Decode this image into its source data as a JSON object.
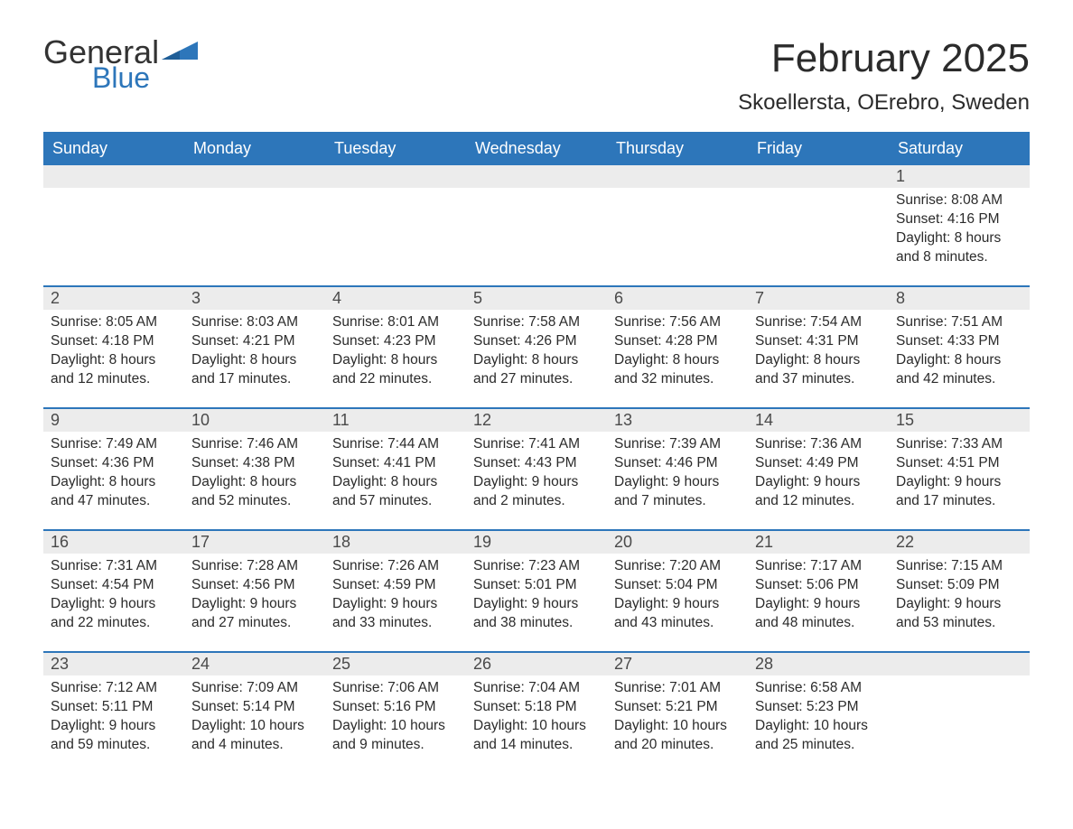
{
  "brand": {
    "word1": "General",
    "word2": "Blue",
    "color_dark": "#333333",
    "color_blue": "#2d76ba"
  },
  "title": "February 2025",
  "location": "Skoellersta, OErebro, Sweden",
  "header_bg": "#2d76ba",
  "header_fg": "#ffffff",
  "daynum_bg": "#ececec",
  "week_border": "#2d76ba",
  "text_color": "#2b2b2b",
  "dow": [
    "Sunday",
    "Monday",
    "Tuesday",
    "Wednesday",
    "Thursday",
    "Friday",
    "Saturday"
  ],
  "label_sunrise": "Sunrise: ",
  "label_sunset": "Sunset: ",
  "label_daylight": "Daylight: ",
  "weeks": [
    [
      null,
      null,
      null,
      null,
      null,
      null,
      {
        "n": "1",
        "sr": "8:08 AM",
        "ss": "4:16 PM",
        "dl": "8 hours and 8 minutes."
      }
    ],
    [
      {
        "n": "2",
        "sr": "8:05 AM",
        "ss": "4:18 PM",
        "dl": "8 hours and 12 minutes."
      },
      {
        "n": "3",
        "sr": "8:03 AM",
        "ss": "4:21 PM",
        "dl": "8 hours and 17 minutes."
      },
      {
        "n": "4",
        "sr": "8:01 AM",
        "ss": "4:23 PM",
        "dl": "8 hours and 22 minutes."
      },
      {
        "n": "5",
        "sr": "7:58 AM",
        "ss": "4:26 PM",
        "dl": "8 hours and 27 minutes."
      },
      {
        "n": "6",
        "sr": "7:56 AM",
        "ss": "4:28 PM",
        "dl": "8 hours and 32 minutes."
      },
      {
        "n": "7",
        "sr": "7:54 AM",
        "ss": "4:31 PM",
        "dl": "8 hours and 37 minutes."
      },
      {
        "n": "8",
        "sr": "7:51 AM",
        "ss": "4:33 PM",
        "dl": "8 hours and 42 minutes."
      }
    ],
    [
      {
        "n": "9",
        "sr": "7:49 AM",
        "ss": "4:36 PM",
        "dl": "8 hours and 47 minutes."
      },
      {
        "n": "10",
        "sr": "7:46 AM",
        "ss": "4:38 PM",
        "dl": "8 hours and 52 minutes."
      },
      {
        "n": "11",
        "sr": "7:44 AM",
        "ss": "4:41 PM",
        "dl": "8 hours and 57 minutes."
      },
      {
        "n": "12",
        "sr": "7:41 AM",
        "ss": "4:43 PM",
        "dl": "9 hours and 2 minutes."
      },
      {
        "n": "13",
        "sr": "7:39 AM",
        "ss": "4:46 PM",
        "dl": "9 hours and 7 minutes."
      },
      {
        "n": "14",
        "sr": "7:36 AM",
        "ss": "4:49 PM",
        "dl": "9 hours and 12 minutes."
      },
      {
        "n": "15",
        "sr": "7:33 AM",
        "ss": "4:51 PM",
        "dl": "9 hours and 17 minutes."
      }
    ],
    [
      {
        "n": "16",
        "sr": "7:31 AM",
        "ss": "4:54 PM",
        "dl": "9 hours and 22 minutes."
      },
      {
        "n": "17",
        "sr": "7:28 AM",
        "ss": "4:56 PM",
        "dl": "9 hours and 27 minutes."
      },
      {
        "n": "18",
        "sr": "7:26 AM",
        "ss": "4:59 PM",
        "dl": "9 hours and 33 minutes."
      },
      {
        "n": "19",
        "sr": "7:23 AM",
        "ss": "5:01 PM",
        "dl": "9 hours and 38 minutes."
      },
      {
        "n": "20",
        "sr": "7:20 AM",
        "ss": "5:04 PM",
        "dl": "9 hours and 43 minutes."
      },
      {
        "n": "21",
        "sr": "7:17 AM",
        "ss": "5:06 PM",
        "dl": "9 hours and 48 minutes."
      },
      {
        "n": "22",
        "sr": "7:15 AM",
        "ss": "5:09 PM",
        "dl": "9 hours and 53 minutes."
      }
    ],
    [
      {
        "n": "23",
        "sr": "7:12 AM",
        "ss": "5:11 PM",
        "dl": "9 hours and 59 minutes."
      },
      {
        "n": "24",
        "sr": "7:09 AM",
        "ss": "5:14 PM",
        "dl": "10 hours and 4 minutes."
      },
      {
        "n": "25",
        "sr": "7:06 AM",
        "ss": "5:16 PM",
        "dl": "10 hours and 9 minutes."
      },
      {
        "n": "26",
        "sr": "7:04 AM",
        "ss": "5:18 PM",
        "dl": "10 hours and 14 minutes."
      },
      {
        "n": "27",
        "sr": "7:01 AM",
        "ss": "5:21 PM",
        "dl": "10 hours and 20 minutes."
      },
      {
        "n": "28",
        "sr": "6:58 AM",
        "ss": "5:23 PM",
        "dl": "10 hours and 25 minutes."
      },
      null
    ]
  ]
}
